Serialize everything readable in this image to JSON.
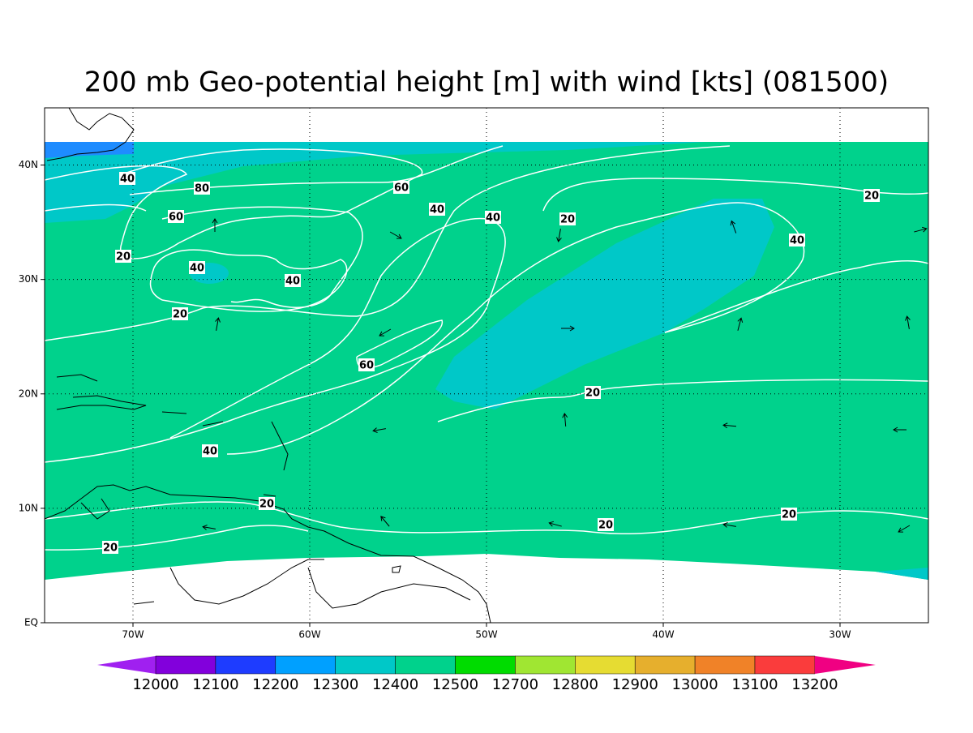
{
  "title": "200 mb Geo-potential height [m] with wind [kts] (081500)",
  "map": {
    "lon_range": [
      -75,
      -25
    ],
    "lat_range": [
      0,
      45
    ],
    "lon_ticks": [
      {
        "value": -70,
        "label": "70W"
      },
      {
        "value": -60,
        "label": "60W"
      },
      {
        "value": -50,
        "label": "50W"
      },
      {
        "value": -40,
        "label": "40W"
      },
      {
        "value": -30,
        "label": "30W"
      }
    ],
    "lat_ticks": [
      {
        "value": 0,
        "label": "EQ"
      },
      {
        "value": 10,
        "label": "10N"
      },
      {
        "value": 20,
        "label": "20N"
      },
      {
        "value": 30,
        "label": "30N"
      },
      {
        "value": 40,
        "label": "40N"
      }
    ],
    "contour_labels": [
      "40",
      "80",
      "60",
      "40",
      "40",
      "20",
      "20",
      "40",
      "60",
      "20",
      "40",
      "40",
      "20",
      "60",
      "20",
      "40",
      "20",
      "20",
      "20",
      "20"
    ]
  },
  "colorbar": {
    "levels": [
      12000,
      12100,
      12200,
      12300,
      12400,
      12500,
      12700,
      12800,
      12900,
      13000,
      13100,
      13200
    ],
    "colors": [
      "#a020f0",
      "#8200dc",
      "#1e3cff",
      "#00a0ff",
      "#00c8c8",
      "#00d28c",
      "#00dc00",
      "#a0e632",
      "#e6dc32",
      "#e6af2d",
      "#f08228",
      "#fa3c3c",
      "#f00082"
    ]
  }
}
